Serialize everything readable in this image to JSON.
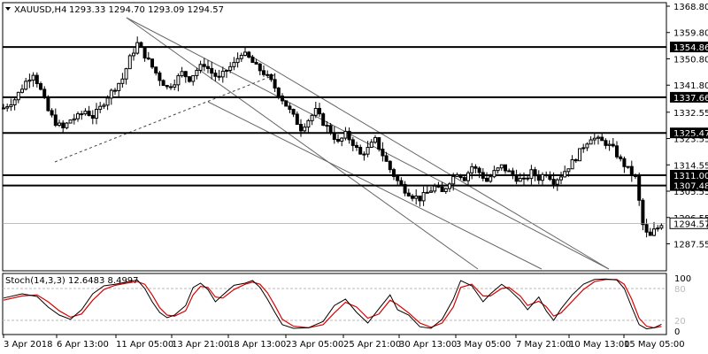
{
  "header": {
    "symbol": "XAUUSD,H4",
    "ohlc": "1293.33 1294.70 1293.09 1294.57"
  },
  "stoch_header": "Stoch(14,3,3) 12.6483 8.4997",
  "chart_data": {
    "type": "candlestick",
    "symbol": "XAUUSD",
    "timeframe": "H4",
    "price_axis": {
      "ticks": [
        1368.8,
        1359.8,
        1350.8,
        1341.8,
        1332.55,
        1323.55,
        1314.55,
        1305.55,
        1296.55,
        1287.55
      ],
      "range": [
        1285.0,
        1371.0
      ]
    },
    "time_labels": [
      "3 Apr 2018",
      "6 Apr 13:00",
      "11 Apr 05:00",
      "13 Apr 21:00",
      "18 Apr 13:00",
      "23 Apr 05:00",
      "25 Apr 21:00",
      "30 Apr 13:00",
      "3 May 05:00",
      "7 May 21:00",
      "10 May 13:00",
      "15 May 05:00"
    ],
    "levels": [
      1354.86,
      1337.66,
      1325.47,
      1311.0,
      1307.48
    ],
    "current_price": 1294.57,
    "close_path": [
      [
        0,
        1334
      ],
      [
        3,
        1337
      ],
      [
        6,
        1343
      ],
      [
        8,
        1346
      ],
      [
        10,
        1340
      ],
      [
        12,
        1333
      ],
      [
        14,
        1329
      ],
      [
        16,
        1327
      ],
      [
        18,
        1330
      ],
      [
        20,
        1331
      ],
      [
        22,
        1333
      ],
      [
        24,
        1331
      ],
      [
        26,
        1334
      ],
      [
        28,
        1338
      ],
      [
        30,
        1341
      ],
      [
        32,
        1344
      ],
      [
        34,
        1351
      ],
      [
        36,
        1356
      ],
      [
        38,
        1352
      ],
      [
        40,
        1348
      ],
      [
        42,
        1344
      ],
      [
        44,
        1341
      ],
      [
        46,
        1343
      ],
      [
        48,
        1346
      ],
      [
        50,
        1344
      ],
      [
        52,
        1347
      ],
      [
        54,
        1349
      ],
      [
        56,
        1346
      ],
      [
        58,
        1344
      ],
      [
        60,
        1347
      ],
      [
        62,
        1349
      ],
      [
        64,
        1353
      ],
      [
        66,
        1351
      ],
      [
        68,
        1348
      ],
      [
        70,
        1346
      ],
      [
        72,
        1343
      ],
      [
        74,
        1339
      ],
      [
        76,
        1335
      ],
      [
        78,
        1331
      ],
      [
        80,
        1327
      ],
      [
        82,
        1330
      ],
      [
        84,
        1333
      ],
      [
        86,
        1329
      ],
      [
        88,
        1326
      ],
      [
        90,
        1322
      ],
      [
        92,
        1325
      ],
      [
        94,
        1322
      ],
      [
        96,
        1318
      ],
      [
        98,
        1320
      ],
      [
        100,
        1323
      ],
      [
        102,
        1318
      ],
      [
        104,
        1313
      ],
      [
        106,
        1309
      ],
      [
        108,
        1306
      ],
      [
        110,
        1304
      ],
      [
        112,
        1303
      ],
      [
        114,
        1305
      ],
      [
        116,
        1307
      ],
      [
        118,
        1305
      ],
      [
        120,
        1309
      ],
      [
        122,
        1312
      ],
      [
        124,
        1310
      ],
      [
        126,
        1314
      ],
      [
        128,
        1312
      ],
      [
        130,
        1309
      ],
      [
        132,
        1312
      ],
      [
        134,
        1314
      ],
      [
        136,
        1312
      ],
      [
        138,
        1310
      ],
      [
        140,
        1309
      ],
      [
        142,
        1312
      ],
      [
        144,
        1310
      ],
      [
        146,
        1312
      ],
      [
        148,
        1309
      ],
      [
        150,
        1311
      ],
      [
        152,
        1314
      ],
      [
        154,
        1317
      ],
      [
        156,
        1321
      ],
      [
        158,
        1324
      ],
      [
        160,
        1323
      ],
      [
        162,
        1322
      ],
      [
        164,
        1320
      ],
      [
        166,
        1316
      ],
      [
        168,
        1313
      ],
      [
        170,
        1310
      ],
      [
        171,
        1302
      ],
      [
        172,
        1294
      ],
      [
        173,
        1291
      ],
      [
        174,
        1290
      ],
      [
        175,
        1292
      ],
      [
        176,
        1293
      ],
      [
        177,
        1294.57
      ]
    ],
    "stochastic": {
      "name": "Stoch(14,3,3)",
      "main": 12.6483,
      "signal": 8.4997,
      "levels": [
        80,
        20
      ],
      "axis_ticks": [
        100,
        80,
        20,
        0
      ],
      "main_path": [
        [
          0,
          62
        ],
        [
          5,
          70
        ],
        [
          9,
          65
        ],
        [
          12,
          45
        ],
        [
          15,
          30
        ],
        [
          18,
          22
        ],
        [
          21,
          40
        ],
        [
          24,
          70
        ],
        [
          27,
          85
        ],
        [
          30,
          88
        ],
        [
          33,
          92
        ],
        [
          36,
          96
        ],
        [
          38,
          80
        ],
        [
          40,
          55
        ],
        [
          42,
          35
        ],
        [
          44,
          25
        ],
        [
          46,
          30
        ],
        [
          49,
          48
        ],
        [
          51,
          82
        ],
        [
          53,
          90
        ],
        [
          55,
          78
        ],
        [
          57,
          55
        ],
        [
          59,
          68
        ],
        [
          62,
          86
        ],
        [
          65,
          90
        ],
        [
          67,
          95
        ],
        [
          69,
          82
        ],
        [
          71,
          60
        ],
        [
          73,
          35
        ],
        [
          75,
          12
        ],
        [
          78,
          5
        ],
        [
          82,
          6
        ],
        [
          86,
          18
        ],
        [
          89,
          48
        ],
        [
          92,
          60
        ],
        [
          95,
          35
        ],
        [
          98,
          15
        ],
        [
          101,
          42
        ],
        [
          104,
          68
        ],
        [
          106,
          40
        ],
        [
          109,
          30
        ],
        [
          112,
          8
        ],
        [
          115,
          5
        ],
        [
          118,
          22
        ],
        [
          121,
          60
        ],
        [
          123,
          95
        ],
        [
          126,
          85
        ],
        [
          129,
          55
        ],
        [
          131,
          70
        ],
        [
          134,
          88
        ],
        [
          136,
          78
        ],
        [
          139,
          58
        ],
        [
          141,
          40
        ],
        [
          144,
          64
        ],
        [
          146,
          38
        ],
        [
          148,
          20
        ],
        [
          150,
          42
        ],
        [
          153,
          68
        ],
        [
          156,
          88
        ],
        [
          159,
          97
        ],
        [
          162,
          98
        ],
        [
          165,
          96
        ],
        [
          167,
          80
        ],
        [
          169,
          45
        ],
        [
          171,
          12
        ],
        [
          173,
          4
        ],
        [
          175,
          6
        ],
        [
          177,
          12.65
        ]
      ],
      "signal_path": [
        [
          0,
          58
        ],
        [
          5,
          66
        ],
        [
          9,
          68
        ],
        [
          12,
          55
        ],
        [
          15,
          38
        ],
        [
          18,
          26
        ],
        [
          21,
          32
        ],
        [
          24,
          58
        ],
        [
          27,
          78
        ],
        [
          30,
          86
        ],
        [
          33,
          90
        ],
        [
          36,
          93
        ],
        [
          38,
          88
        ],
        [
          40,
          68
        ],
        [
          42,
          44
        ],
        [
          44,
          30
        ],
        [
          46,
          28
        ],
        [
          49,
          38
        ],
        [
          51,
          68
        ],
        [
          53,
          84
        ],
        [
          55,
          82
        ],
        [
          57,
          64
        ],
        [
          59,
          62
        ],
        [
          62,
          78
        ],
        [
          65,
          88
        ],
        [
          67,
          92
        ],
        [
          69,
          88
        ],
        [
          71,
          72
        ],
        [
          73,
          48
        ],
        [
          75,
          22
        ],
        [
          78,
          9
        ],
        [
          82,
          6
        ],
        [
          86,
          12
        ],
        [
          89,
          34
        ],
        [
          92,
          54
        ],
        [
          95,
          45
        ],
        [
          98,
          24
        ],
        [
          101,
          32
        ],
        [
          104,
          58
        ],
        [
          106,
          50
        ],
        [
          109,
          34
        ],
        [
          112,
          15
        ],
        [
          115,
          7
        ],
        [
          118,
          15
        ],
        [
          121,
          45
        ],
        [
          123,
          82
        ],
        [
          126,
          88
        ],
        [
          129,
          66
        ],
        [
          131,
          66
        ],
        [
          134,
          80
        ],
        [
          136,
          82
        ],
        [
          139,
          66
        ],
        [
          141,
          48
        ],
        [
          144,
          56
        ],
        [
          146,
          46
        ],
        [
          148,
          28
        ],
        [
          150,
          34
        ],
        [
          153,
          56
        ],
        [
          156,
          78
        ],
        [
          159,
          93
        ],
        [
          162,
          97
        ],
        [
          165,
          97
        ],
        [
          167,
          88
        ],
        [
          169,
          60
        ],
        [
          171,
          24
        ],
        [
          173,
          9
        ],
        [
          175,
          6
        ],
        [
          177,
          8.5
        ]
      ]
    }
  }
}
